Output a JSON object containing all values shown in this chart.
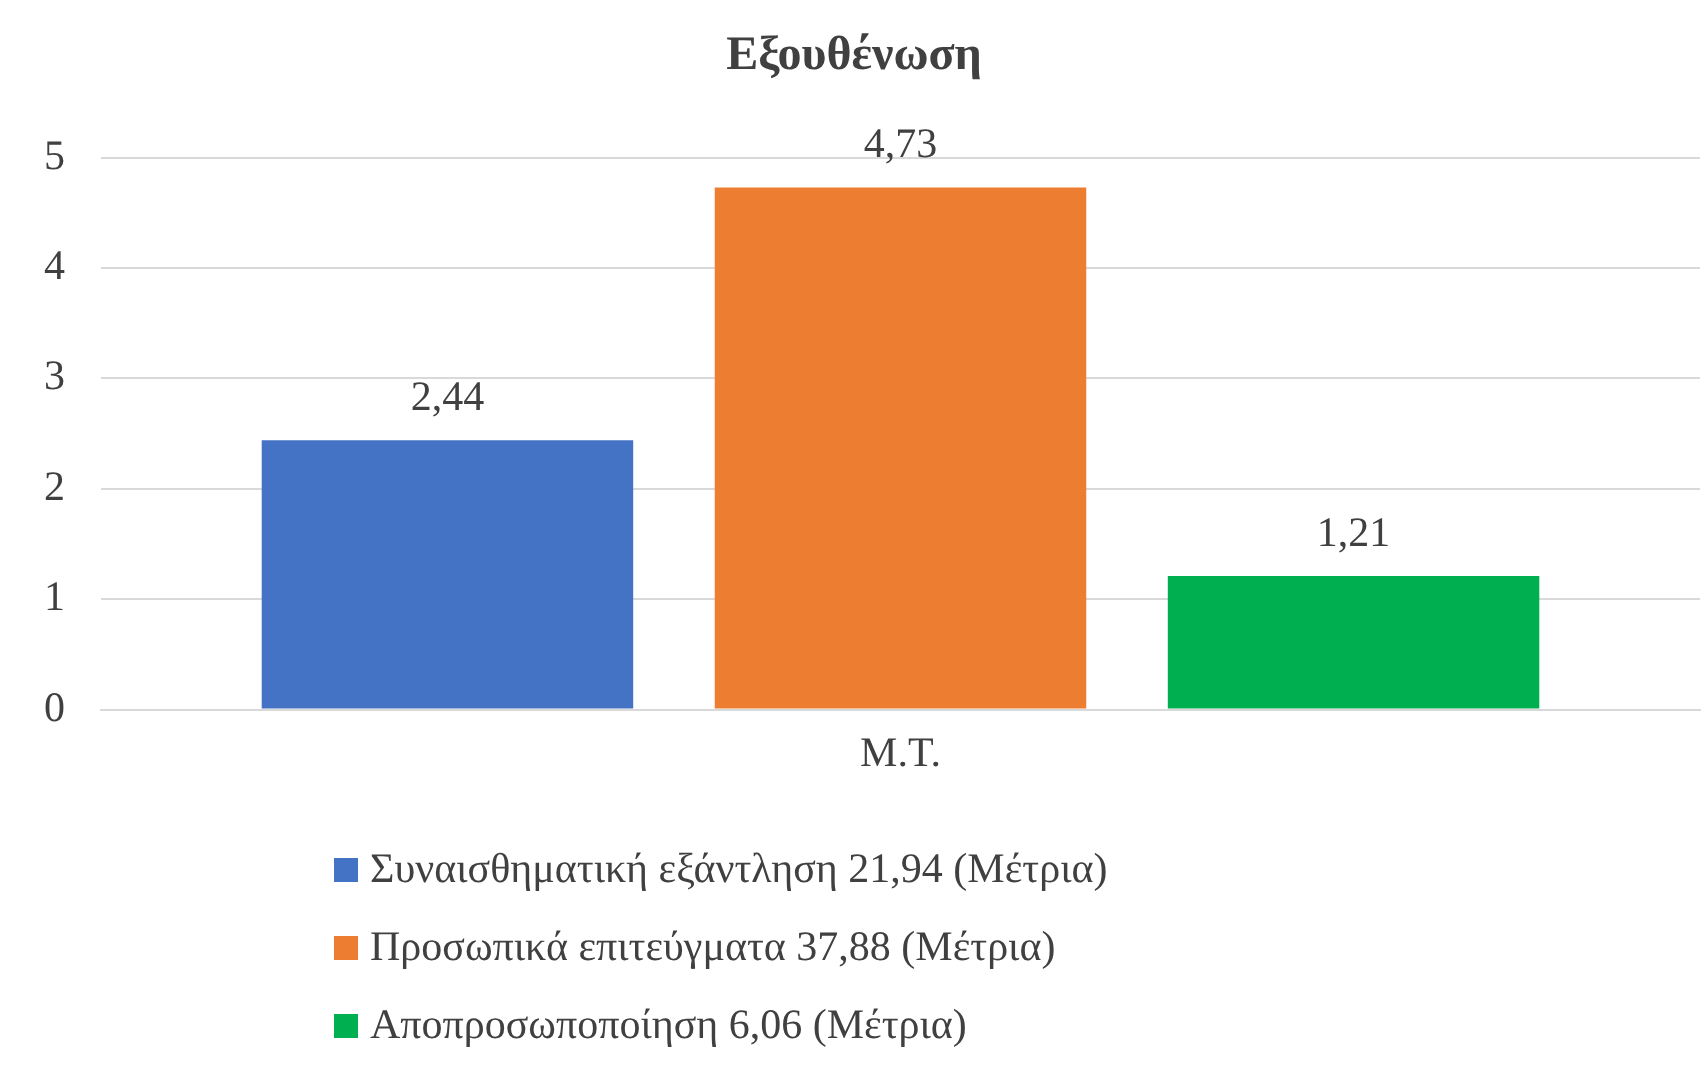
{
  "chart_data": {
    "type": "bar",
    "title": "Εξουθένωση",
    "categories": [
      "Μ.Τ."
    ],
    "series": [
      {
        "name": "Συναισθηματική εξάντληση 21,94 (Μέτρια)",
        "color": "#4472c4",
        "values": [
          2.44
        ],
        "value_labels": [
          "2,44"
        ]
      },
      {
        "name": "Προσωπικά επιτεύγματα 37,88 (Μέτρια)",
        "color": "#ed7d31",
        "values": [
          4.73
        ],
        "value_labels": [
          "4,73"
        ]
      },
      {
        "name": "Αποπροσωποποίηση 6,06 (Μέτρια)",
        "color": "#00b050",
        "values": [
          1.21
        ],
        "value_labels": [
          "1,21"
        ]
      }
    ],
    "ylim": [
      0,
      5
    ],
    "yticks": [
      0,
      1,
      2,
      3,
      4,
      5
    ],
    "grid": "y",
    "legend": "bottom"
  }
}
